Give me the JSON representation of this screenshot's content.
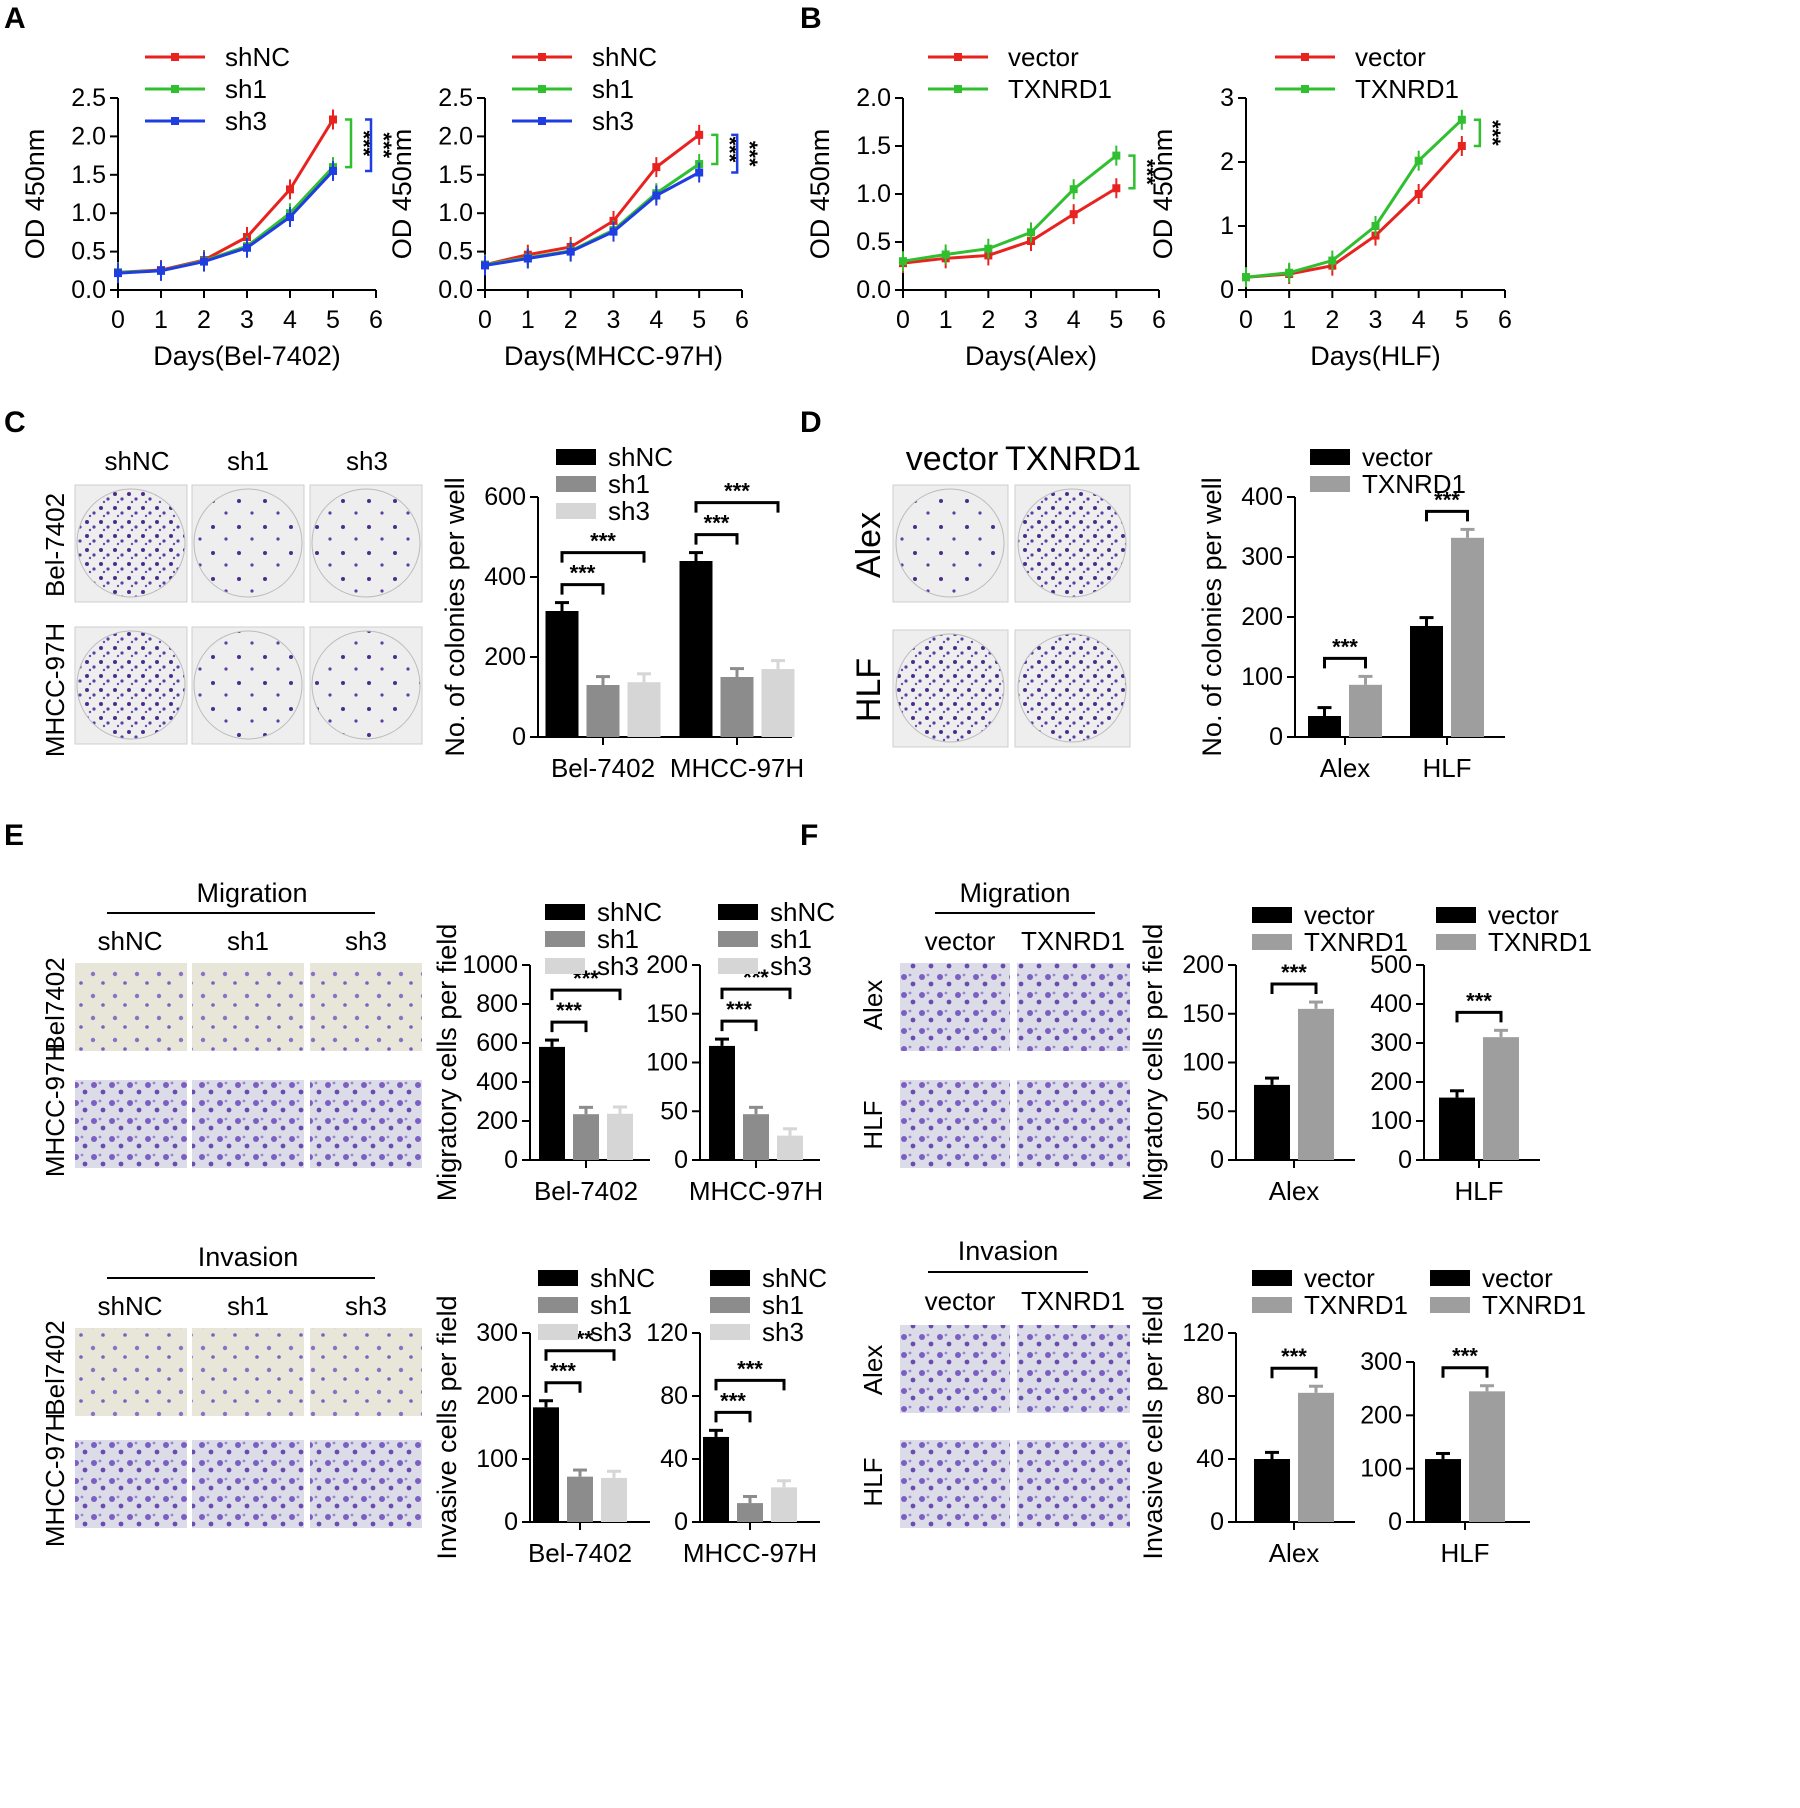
{
  "panels": {
    "A": {
      "letter": "A"
    },
    "B": {
      "letter": "B"
    },
    "C": {
      "letter": "C",
      "col_labels": [
        "shNC",
        "sh1",
        "sh3"
      ],
      "row_labels": [
        "Bel-7402",
        "MHCC-97H"
      ]
    },
    "D": {
      "letter": "D",
      "col_labels": [
        "vector",
        "TXNRD1"
      ],
      "row_labels": [
        "Alex",
        "HLF"
      ]
    },
    "E": {
      "letter": "E",
      "migration_title": "Migration",
      "invasion_title": "Invasion",
      "col_labels": [
        "shNC",
        "sh1",
        "sh3"
      ],
      "row_labels": [
        "Bel7402",
        "MHCC-97H"
      ]
    },
    "F": {
      "letter": "F",
      "migration_title": "Migration",
      "invasion_title": "Invasion",
      "col_labels": [
        "vector",
        "TXNRD1"
      ],
      "row_labels": [
        "Alex",
        "HLF"
      ]
    }
  },
  "significance_label": "***",
  "colors": {
    "shNC": "#e8231f",
    "sh1": "#2fbf2f",
    "sh3": "#1f3de0",
    "vector_line": "#e8231f",
    "TXNRD1_line": "#2fbf2f",
    "bar_black": "#000000",
    "bar_dark_gray": "#8c8c8c",
    "bar_light_gray": "#d6d6d6",
    "bar_gray": "#9e9e9e",
    "crystal_violet": "#5a3fa0"
  },
  "chart_data": [
    {
      "id": "A1",
      "type": "line",
      "xlabel": "Days(Bel-7402)",
      "ylabel": "OD 450nm",
      "x": [
        0,
        1,
        2,
        3,
        4,
        5
      ],
      "xlim": [
        0,
        6
      ],
      "ylim": [
        0,
        2.5
      ],
      "yticks": [
        0.0,
        0.5,
        1.0,
        1.5,
        2.0,
        2.5
      ],
      "series": [
        {
          "name": "shNC",
          "values": [
            0.23,
            0.26,
            0.39,
            0.69,
            1.31,
            2.22
          ]
        },
        {
          "name": "sh1",
          "values": [
            0.23,
            0.25,
            0.38,
            0.57,
            1.0,
            1.6
          ]
        },
        {
          "name": "sh3",
          "values": [
            0.22,
            0.25,
            0.37,
            0.55,
            0.95,
            1.55
          ]
        }
      ],
      "significance": [
        "***",
        "***"
      ]
    },
    {
      "id": "A2",
      "type": "line",
      "xlabel": "Days(MHCC-97H)",
      "ylabel": "OD 450nm",
      "x": [
        0,
        1,
        2,
        3,
        4,
        5
      ],
      "xlim": [
        0,
        6
      ],
      "ylim": [
        0,
        2.5
      ],
      "yticks": [
        0.0,
        0.5,
        1.0,
        1.5,
        2.0,
        2.5
      ],
      "series": [
        {
          "name": "shNC",
          "values": [
            0.33,
            0.46,
            0.56,
            0.9,
            1.6,
            2.02
          ]
        },
        {
          "name": "sh1",
          "values": [
            0.33,
            0.42,
            0.51,
            0.78,
            1.26,
            1.64
          ]
        },
        {
          "name": "sh3",
          "values": [
            0.32,
            0.41,
            0.5,
            0.76,
            1.23,
            1.53
          ]
        }
      ],
      "significance": [
        "***",
        "***"
      ]
    },
    {
      "id": "B1",
      "type": "line",
      "xlabel": "Days(Alex)",
      "ylabel": "OD 450nm",
      "x": [
        0,
        1,
        2,
        3,
        4,
        5
      ],
      "xlim": [
        0,
        6
      ],
      "ylim": [
        0,
        2.0
      ],
      "yticks": [
        0.0,
        0.5,
        1.0,
        1.5,
        2.0
      ],
      "series": [
        {
          "name": "vector",
          "values": [
            0.28,
            0.33,
            0.36,
            0.51,
            0.79,
            1.06
          ]
        },
        {
          "name": "TXNRD1",
          "values": [
            0.3,
            0.37,
            0.43,
            0.6,
            1.05,
            1.4
          ]
        }
      ],
      "significance": [
        "***"
      ]
    },
    {
      "id": "B2",
      "type": "line",
      "xlabel": "Days(HLF)",
      "ylabel": "OD 450nm",
      "x": [
        0,
        1,
        2,
        3,
        4,
        5
      ],
      "xlim": [
        0,
        6
      ],
      "ylim": [
        0,
        3
      ],
      "yticks": [
        0,
        1,
        2,
        3
      ],
      "series": [
        {
          "name": "vector",
          "values": [
            0.2,
            0.25,
            0.38,
            0.85,
            1.5,
            2.25
          ]
        },
        {
          "name": "TXNRD1",
          "values": [
            0.2,
            0.27,
            0.46,
            1.0,
            2.02,
            2.66
          ]
        }
      ],
      "significance": [
        "***"
      ]
    },
    {
      "id": "C",
      "type": "bar",
      "ylabel": "No. of colonies per well",
      "categories": [
        "Bel-7402",
        "MHCC-97H"
      ],
      "ylim": [
        0,
        600
      ],
      "yticks": [
        0,
        200,
        400,
        600
      ],
      "series": [
        {
          "name": "shNC",
          "values": [
            315,
            440
          ]
        },
        {
          "name": "sh1",
          "values": [
            130,
            150
          ]
        },
        {
          "name": "sh3",
          "values": [
            137,
            170
          ]
        }
      ]
    },
    {
      "id": "D",
      "type": "bar",
      "ylabel": "No. of colonies per well",
      "categories": [
        "Alex",
        "HLF"
      ],
      "ylim": [
        0,
        400
      ],
      "yticks": [
        0,
        100,
        200,
        300,
        400
      ],
      "series": [
        {
          "name": "vector",
          "values": [
            35,
            185
          ]
        },
        {
          "name": "TXNRD1",
          "values": [
            87,
            332
          ]
        }
      ]
    },
    {
      "id": "E1",
      "type": "bar",
      "ylabel": "Migratory cells per field",
      "categories": [
        "Bel-7402"
      ],
      "ylim": [
        0,
        1000
      ],
      "yticks": [
        0,
        200,
        400,
        600,
        800,
        1000
      ],
      "series": [
        {
          "name": "shNC",
          "values": [
            580
          ]
        },
        {
          "name": "sh1",
          "values": [
            235
          ]
        },
        {
          "name": "sh3",
          "values": [
            237
          ]
        }
      ]
    },
    {
      "id": "E2",
      "type": "bar",
      "categories": [
        "MHCC-97H"
      ],
      "ylim": [
        0,
        200
      ],
      "yticks": [
        0,
        50,
        100,
        150,
        200
      ],
      "series": [
        {
          "name": "shNC",
          "values": [
            117
          ]
        },
        {
          "name": "sh1",
          "values": [
            47
          ]
        },
        {
          "name": "sh3",
          "values": [
            25
          ]
        }
      ]
    },
    {
      "id": "E3",
      "type": "bar",
      "ylabel": "Invasive cells per field",
      "categories": [
        "Bel-7402"
      ],
      "ylim": [
        0,
        300
      ],
      "yticks": [
        0,
        100,
        200,
        300
      ],
      "series": [
        {
          "name": "shNC",
          "values": [
            182
          ]
        },
        {
          "name": "sh1",
          "values": [
            72
          ]
        },
        {
          "name": "sh3",
          "values": [
            70
          ]
        }
      ]
    },
    {
      "id": "E4",
      "type": "bar",
      "categories": [
        "MHCC-97H"
      ],
      "ylim": [
        0,
        120
      ],
      "yticks": [
        0,
        40,
        80,
        120
      ],
      "series": [
        {
          "name": "shNC",
          "values": [
            54
          ]
        },
        {
          "name": "sh1",
          "values": [
            12
          ]
        },
        {
          "name": "sh3",
          "values": [
            22
          ]
        }
      ]
    },
    {
      "id": "F1",
      "type": "bar",
      "ylabel": "Migratory cells per field",
      "categories": [
        "Alex"
      ],
      "ylim": [
        0,
        200
      ],
      "yticks": [
        0,
        50,
        100,
        150,
        200
      ],
      "series": [
        {
          "name": "vector",
          "values": [
            77
          ]
        },
        {
          "name": "TXNRD1",
          "values": [
            155
          ]
        }
      ]
    },
    {
      "id": "F2",
      "type": "bar",
      "categories": [
        "HLF"
      ],
      "ylim": [
        0,
        500
      ],
      "yticks": [
        0,
        100,
        200,
        300,
        400,
        500
      ],
      "series": [
        {
          "name": "vector",
          "values": [
            160
          ]
        },
        {
          "name": "TXNRD1",
          "values": [
            315
          ]
        }
      ]
    },
    {
      "id": "F3",
      "type": "bar",
      "ylabel": "Invasive cells per field",
      "categories": [
        "Alex"
      ],
      "ylim": [
        0,
        120
      ],
      "yticks": [
        0,
        40,
        80,
        120
      ],
      "series": [
        {
          "name": "vector",
          "values": [
            40
          ]
        },
        {
          "name": "TXNRD1",
          "values": [
            82
          ]
        }
      ]
    },
    {
      "id": "F4",
      "type": "bar",
      "categories": [
        "HLF"
      ],
      "ylim": [
        0,
        350
      ],
      "yticks": [
        0,
        100,
        200,
        300
      ],
      "series": [
        {
          "name": "vector",
          "values": [
            118
          ]
        },
        {
          "name": "TXNRD1",
          "values": [
            245
          ]
        }
      ]
    }
  ]
}
